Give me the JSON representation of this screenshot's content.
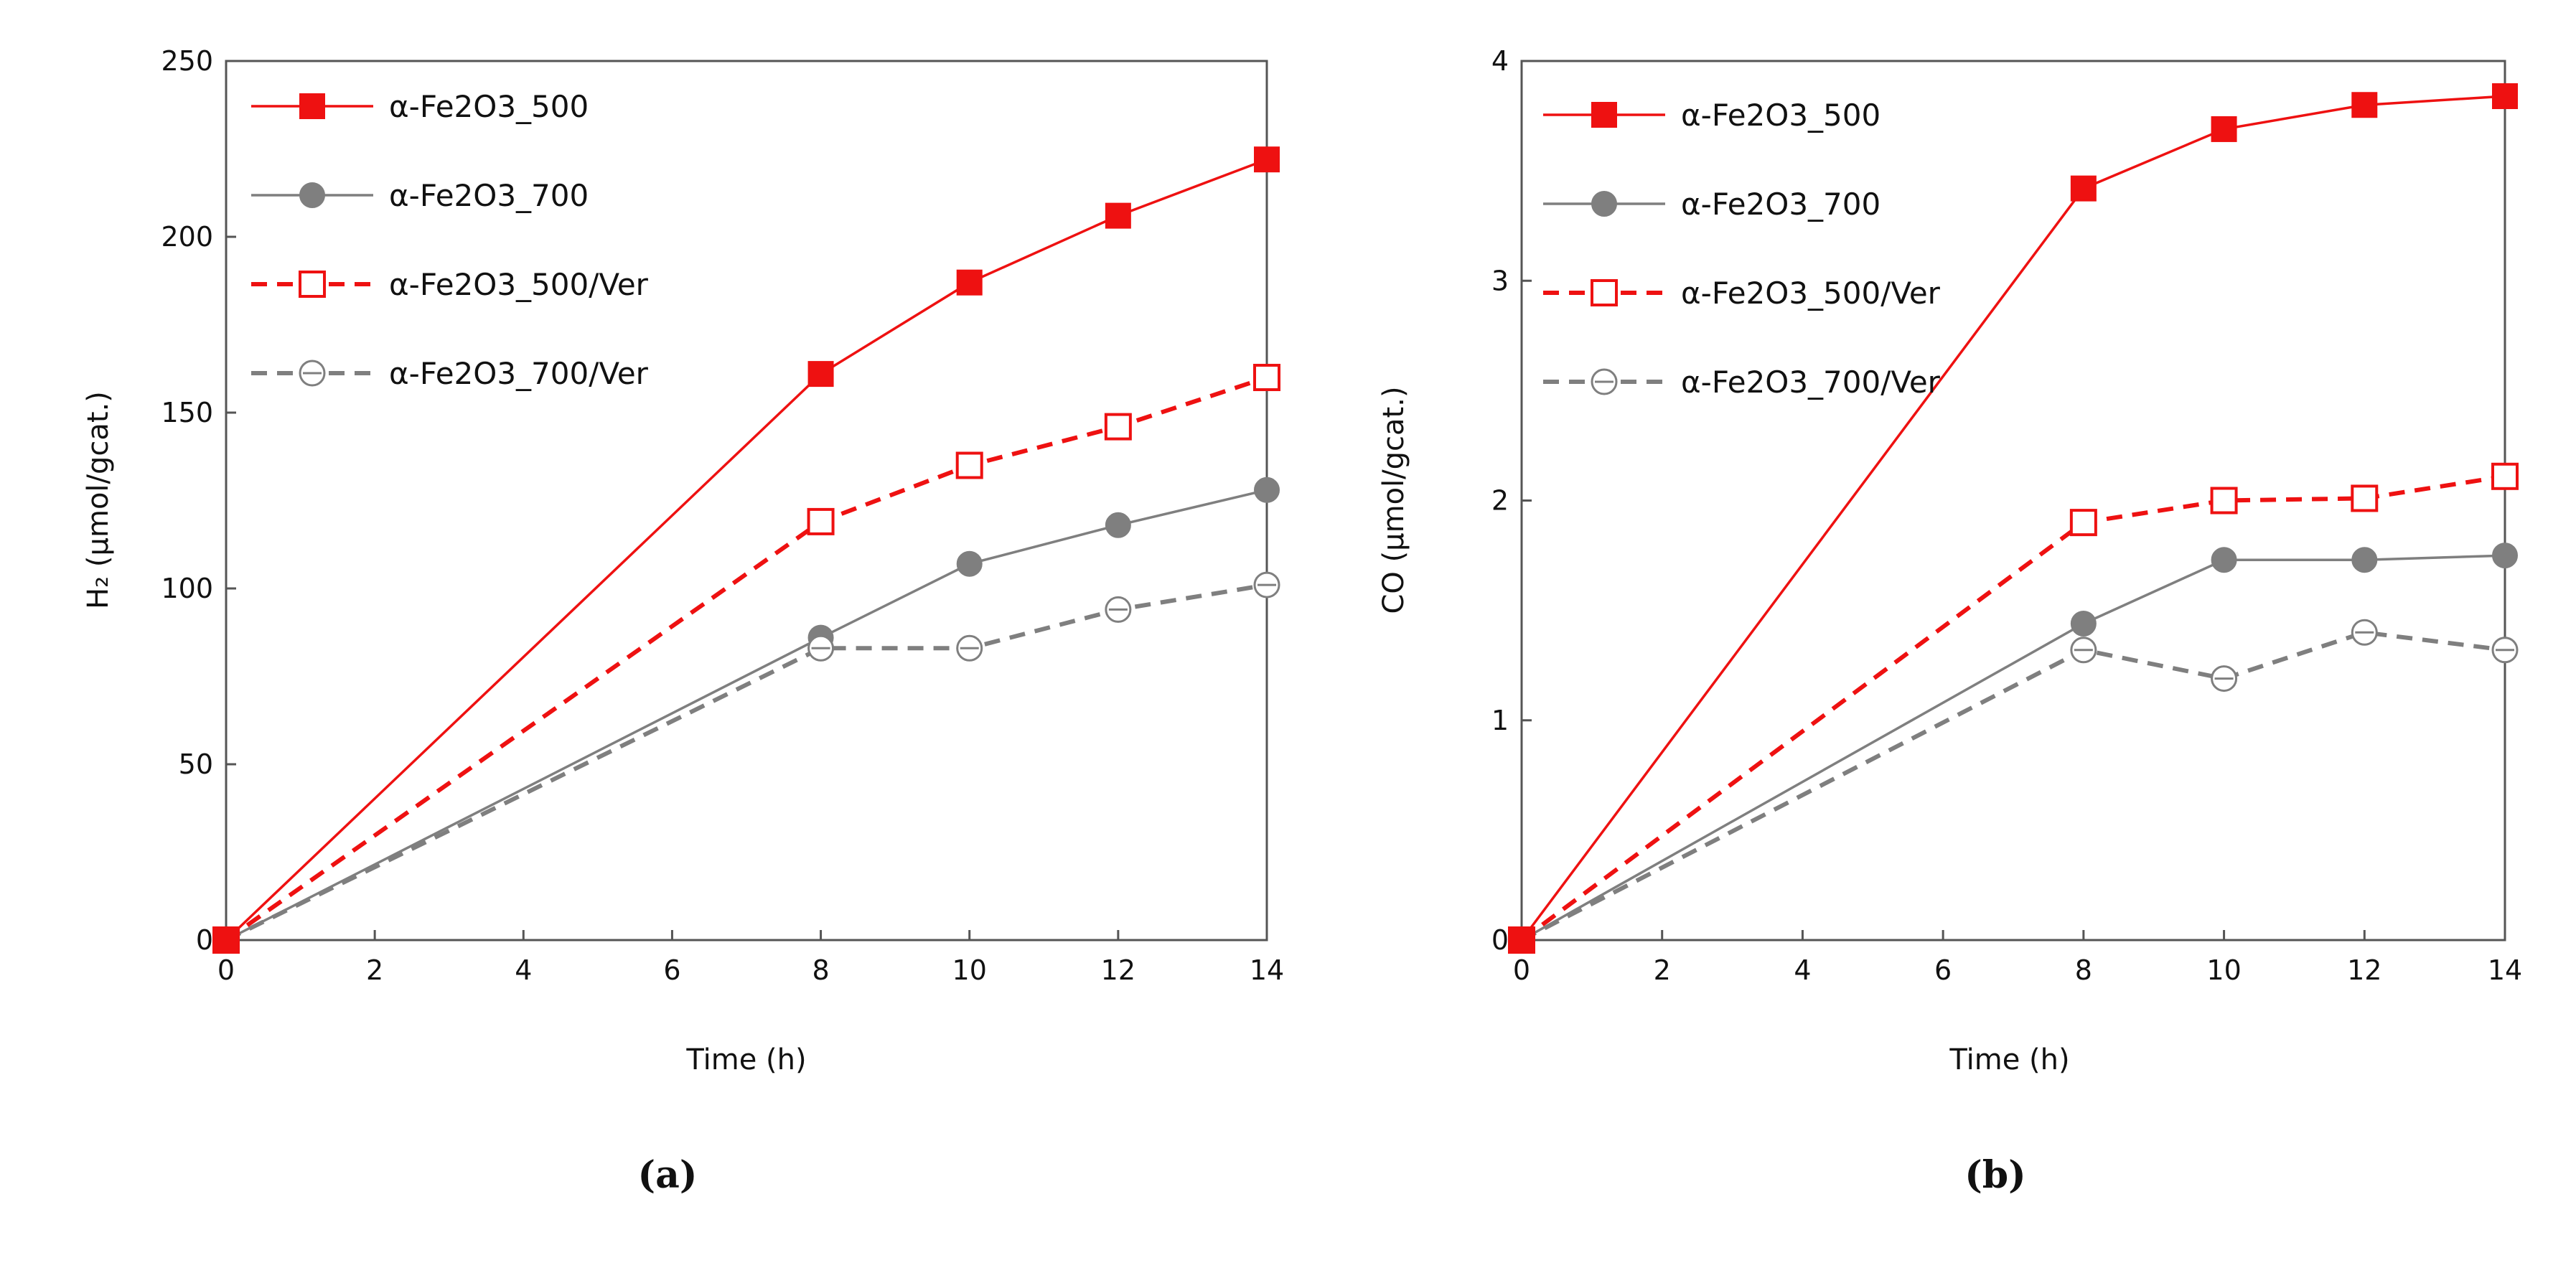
{
  "colors": {
    "red": "#ee1111",
    "gray": "#7f7f7f",
    "axis": "#555555",
    "text": "#111111"
  },
  "chart_data": [
    {
      "type": "line",
      "panel_label": "(a)",
      "xlabel": "Time (h)",
      "ylabel": "H₂ (µmol/gcat.)",
      "xlim": [
        0,
        14
      ],
      "ylim": [
        0,
        250
      ],
      "xticks": [
        "0",
        "2",
        "4",
        "6",
        "8",
        "10",
        "12",
        "14"
      ],
      "yticks": [
        "0",
        "50",
        "100",
        "150",
        "200",
        "250"
      ],
      "grid": false,
      "legend_position": "top-left",
      "x": [
        0,
        8,
        10,
        12,
        14
      ],
      "series": [
        {
          "name": "α-Fe2O3_500",
          "values": [
            0,
            161,
            187,
            206,
            222
          ],
          "color": "#ee1111",
          "dash": "solid",
          "marker": "square-filled"
        },
        {
          "name": "α-Fe2O3_700",
          "values": [
            0,
            86,
            107,
            118,
            128
          ],
          "color": "#7f7f7f",
          "dash": "solid",
          "marker": "circle-filled"
        },
        {
          "name": "α-Fe2O3_500/Ver",
          "values": [
            0,
            119,
            135,
            146,
            160
          ],
          "color": "#ee1111",
          "dash": "dashed",
          "marker": "square-open"
        },
        {
          "name": "α-Fe2O3_700/Ver",
          "values": [
            0,
            83,
            83,
            94,
            101
          ],
          "color": "#7f7f7f",
          "dash": "dashed",
          "marker": "circle-open-bar"
        }
      ]
    },
    {
      "type": "line",
      "panel_label": "(b)",
      "xlabel": "Time (h)",
      "ylabel": "CO (µmol/gcat.)",
      "xlim": [
        0,
        14
      ],
      "ylim": [
        0,
        4
      ],
      "xticks": [
        "0",
        "2",
        "4",
        "6",
        "8",
        "10",
        "12",
        "14"
      ],
      "yticks": [
        "0",
        "1",
        "2",
        "3",
        "4"
      ],
      "grid": false,
      "legend_position": "top-left",
      "x": [
        0,
        8,
        10,
        12,
        14
      ],
      "series": [
        {
          "name": "α-Fe2O3_500",
          "values": [
            0,
            3.42,
            3.69,
            3.8,
            3.84
          ],
          "color": "#ee1111",
          "dash": "solid",
          "marker": "square-filled"
        },
        {
          "name": "α-Fe2O3_700",
          "values": [
            0,
            1.44,
            1.73,
            1.73,
            1.75
          ],
          "color": "#7f7f7f",
          "dash": "solid",
          "marker": "circle-filled"
        },
        {
          "name": "α-Fe2O3_500/Ver",
          "values": [
            0,
            1.9,
            2.0,
            2.01,
            2.11
          ],
          "color": "#ee1111",
          "dash": "dashed",
          "marker": "square-open"
        },
        {
          "name": "α-Fe2O3_700/Ver",
          "values": [
            0,
            1.32,
            1.19,
            1.4,
            1.32
          ],
          "color": "#7f7f7f",
          "dash": "dashed",
          "marker": "circle-open-bar"
        }
      ]
    }
  ]
}
